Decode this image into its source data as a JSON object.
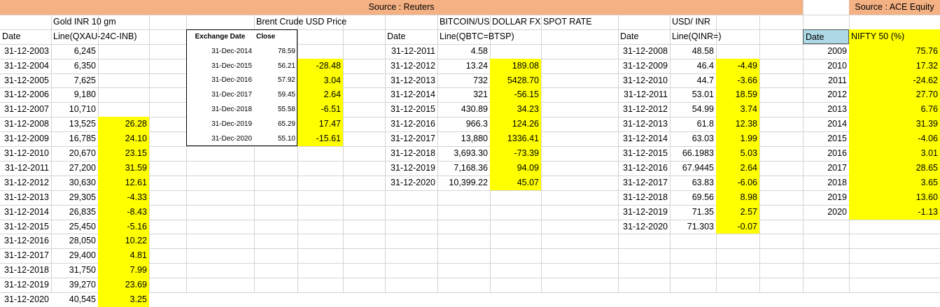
{
  "header": {
    "source_reuters": "Source : Reuters",
    "source_ace": "Source : ACE Equity"
  },
  "gold": {
    "title": "Gold INR 10 gm",
    "date_header": "Date",
    "line_header": "Line(QXAU-24C-INB)",
    "rows": [
      {
        "date": "31-12-2003",
        "value": "6,245",
        "pct": ""
      },
      {
        "date": "31-12-2004",
        "value": "6,350",
        "pct": ""
      },
      {
        "date": "31-12-2005",
        "value": "7,625",
        "pct": ""
      },
      {
        "date": "31-12-2006",
        "value": "9,180",
        "pct": ""
      },
      {
        "date": "31-12-2007",
        "value": "10,710",
        "pct": ""
      },
      {
        "date": "31-12-2008",
        "value": "13,525",
        "pct": "26.28"
      },
      {
        "date": "31-12-2009",
        "value": "16,785",
        "pct": "24.10"
      },
      {
        "date": "31-12-2010",
        "value": "20,670",
        "pct": "23.15"
      },
      {
        "date": "31-12-2011",
        "value": "27,200",
        "pct": "31.59"
      },
      {
        "date": "31-12-2012",
        "value": "30,630",
        "pct": "12.61"
      },
      {
        "date": "31-12-2013",
        "value": "29,305",
        "pct": "-4.33"
      },
      {
        "date": "31-12-2014",
        "value": "26,835",
        "pct": "-8.43"
      },
      {
        "date": "31-12-2015",
        "value": "25,450",
        "pct": "-5.16"
      },
      {
        "date": "31-12-2016",
        "value": "28,050",
        "pct": "10.22"
      },
      {
        "date": "31-12-2017",
        "value": "29,400",
        "pct": "4.81"
      },
      {
        "date": "31-12-2018",
        "value": "31,750",
        "pct": "7.99"
      },
      {
        "date": "31-12-2019",
        "value": "39,270",
        "pct": "23.69"
      },
      {
        "date": "31-12-2020",
        "value": "40,545",
        "pct": "3.25"
      }
    ]
  },
  "brent": {
    "title": "Brent Crude USD Price",
    "exchange_date_header": "Exchange Date",
    "close_header": "Close",
    "rows": [
      {
        "date": "31-Dec-2014",
        "close": "78.59",
        "pct": ""
      },
      {
        "date": "31-Dec-2015",
        "close": "56.21",
        "pct": "-28.48"
      },
      {
        "date": "31-Dec-2016",
        "close": "57.92",
        "pct": "3.04"
      },
      {
        "date": "31-Dec-2017",
        "close": "59.45",
        "pct": "2.64"
      },
      {
        "date": "31-Dec-2018",
        "close": "55.58",
        "pct": "-6.51"
      },
      {
        "date": "31-Dec-2019",
        "close": "65.29",
        "pct": "17.47"
      },
      {
        "date": "31-Dec-2020",
        "close": "55.10",
        "pct": "-15.61"
      }
    ]
  },
  "bitcoin": {
    "title": "BITCOIN/US DOLLAR FX SPOT RATE",
    "date_header": "Date",
    "line_header": "Line(QBTC=BTSP)",
    "rows": [
      {
        "date": "31-12-2011",
        "value": "4.58",
        "pct": ""
      },
      {
        "date": "31-12-2012",
        "value": "13.24",
        "pct": "189.08"
      },
      {
        "date": "31-12-2013",
        "value": "732",
        "pct": "5428.70"
      },
      {
        "date": "31-12-2014",
        "value": "321",
        "pct": "-56.15"
      },
      {
        "date": "31-12-2015",
        "value": "430.89",
        "pct": "34.23"
      },
      {
        "date": "31-12-2016",
        "value": "966.3",
        "pct": "124.26"
      },
      {
        "date": "31-12-2017",
        "value": "13,880",
        "pct": "1336.41"
      },
      {
        "date": "31-12-2018",
        "value": "3,693.30",
        "pct": "-73.39"
      },
      {
        "date": "31-12-2019",
        "value": "7,168.36",
        "pct": "94.09"
      },
      {
        "date": "31-12-2020",
        "value": "10,399.22",
        "pct": "45.07"
      }
    ]
  },
  "usdinr": {
    "title": "USD/ INR",
    "date_header": "Date",
    "line_header": "Line(QINR=)",
    "rows": [
      {
        "date": "31-12-2008",
        "value": "48.58",
        "pct": ""
      },
      {
        "date": "31-12-2009",
        "value": "46.4",
        "pct": "-4.49"
      },
      {
        "date": "31-12-2010",
        "value": "44.7",
        "pct": "-3.66"
      },
      {
        "date": "31-12-2011",
        "value": "53.01",
        "pct": "18.59"
      },
      {
        "date": "31-12-2012",
        "value": "54.99",
        "pct": "3.74"
      },
      {
        "date": "31-12-2013",
        "value": "61.8",
        "pct": "12.38"
      },
      {
        "date": "31-12-2014",
        "value": "63.03",
        "pct": "1.99"
      },
      {
        "date": "31-12-2015",
        "value": "66.1983",
        "pct": "5.03"
      },
      {
        "date": "31-12-2016",
        "value": "67.9445",
        "pct": "2.64"
      },
      {
        "date": "31-12-2017",
        "value": "63.83",
        "pct": "-6.06"
      },
      {
        "date": "31-12-2018",
        "value": "69.56",
        "pct": "8.98"
      },
      {
        "date": "31-12-2019",
        "value": "71.35",
        "pct": "2.57"
      },
      {
        "date": "31-12-2020",
        "value": "71.303",
        "pct": "-0.07"
      }
    ]
  },
  "nifty": {
    "date_header": "Date",
    "value_header": "NIFTY 50 (%)",
    "rows": [
      {
        "year": "2009",
        "pct": "75.76"
      },
      {
        "year": "2010",
        "pct": "17.32"
      },
      {
        "year": "2011",
        "pct": "-24.62"
      },
      {
        "year": "2012",
        "pct": "27.70"
      },
      {
        "year": "2013",
        "pct": "6.76"
      },
      {
        "year": "2014",
        "pct": "31.39"
      },
      {
        "year": "2015",
        "pct": "-4.06"
      },
      {
        "year": "2016",
        "pct": "3.01"
      },
      {
        "year": "2017",
        "pct": "28.65"
      },
      {
        "year": "2018",
        "pct": "3.65"
      },
      {
        "year": "2019",
        "pct": "13.60"
      },
      {
        "year": "2020",
        "pct": "-1.13"
      }
    ]
  }
}
